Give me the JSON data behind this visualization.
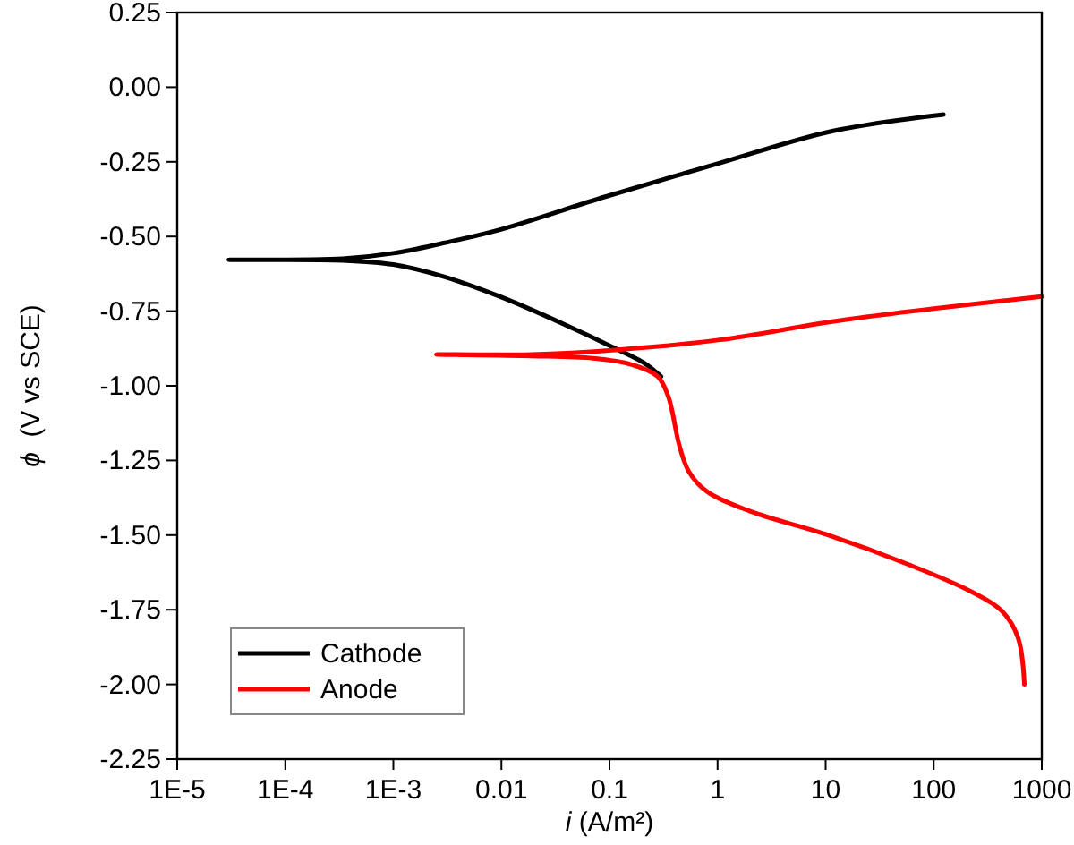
{
  "chart_data": {
    "type": "line",
    "xlabel": "i (A/m²)",
    "ylabel": "ϕ  (V vs SCE)",
    "log": "x",
    "xlim": [
      1e-05,
      1000
    ],
    "ylim": [
      -2.25,
      0.25
    ],
    "xticks": [
      {
        "value": 1e-05,
        "label": "1E-5"
      },
      {
        "value": 0.0001,
        "label": "1E-4"
      },
      {
        "value": 0.001,
        "label": "1E-3"
      },
      0.01,
      0.1,
      1,
      10,
      100,
      1000
    ],
    "yticks": [
      {
        "value": 0.25,
        "label": "0.25"
      },
      {
        "value": 0,
        "label": "0.00"
      },
      {
        "value": -0.25,
        "label": "-0.25"
      },
      {
        "value": -0.5,
        "label": "-0.50"
      },
      {
        "value": -0.75,
        "label": "-0.75"
      },
      {
        "value": -1,
        "label": "-1.00"
      },
      {
        "value": -1.25,
        "label": "-1.25"
      },
      {
        "value": -1.5,
        "label": "-1.50"
      },
      {
        "value": -1.75,
        "label": "-1.75"
      },
      {
        "value": -2,
        "label": "-2.00"
      },
      {
        "value": -2.25,
        "label": "-2.25"
      }
    ],
    "grid": false,
    "legend": "bottom left",
    "line_style": "solid",
    "series": [
      {
        "name": "Cathode",
        "color": "#000000",
        "x": [
          123,
          11.5,
          1.05,
          0.093,
          0.0095,
          0.0029,
          0.001,
          0.00034,
          3e-05,
          0.00034,
          0.001,
          0.0029,
          0.0095,
          0.036,
          0.12,
          0.21,
          0.3
        ],
        "values": [
          -0.092,
          -0.147,
          -0.254,
          -0.366,
          -0.478,
          -0.522,
          -0.556,
          -0.574,
          -0.578,
          -0.58,
          -0.594,
          -0.634,
          -0.7,
          -0.79,
          -0.879,
          -0.924,
          -0.969
        ]
      },
      {
        "name": "Anode",
        "color": "#ff0000",
        "x": [
          1000,
          15,
          1.05,
          0.12,
          0.019,
          0.0025,
          0.019,
          0.071,
          0.16,
          0.28,
          0.35,
          0.38,
          0.44,
          0.54,
          0.79,
          2,
          10.2,
          58,
          219,
          427,
          603,
          690
        ],
        "values": [
          -0.701,
          -0.779,
          -0.846,
          -0.879,
          -0.895,
          -0.895,
          -0.9,
          -0.908,
          -0.929,
          -0.969,
          -1.036,
          -1.085,
          -1.196,
          -1.286,
          -1.353,
          -1.42,
          -1.498,
          -1.598,
          -1.688,
          -1.754,
          -1.844,
          -2
        ]
      }
    ]
  }
}
